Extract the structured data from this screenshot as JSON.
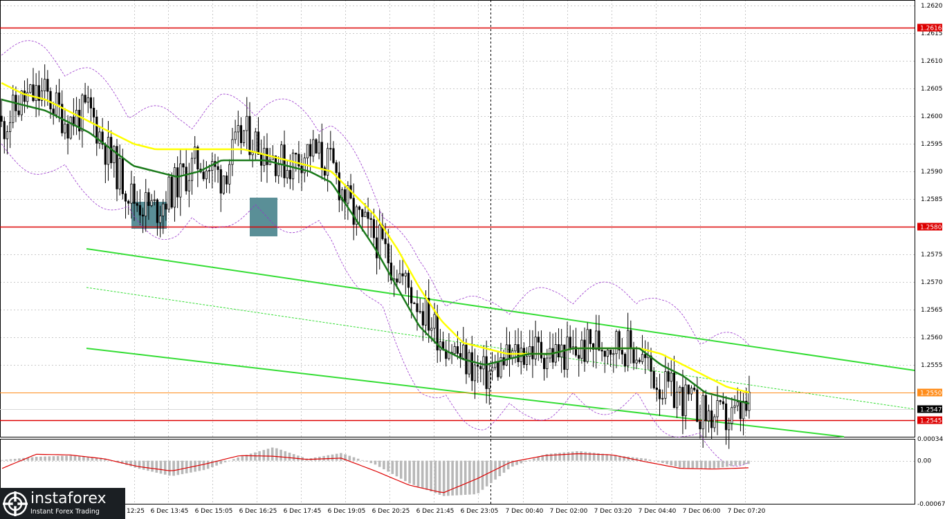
{
  "logo": {
    "name": "instaforex",
    "tagline": "Instant Forex Trading"
  },
  "colors": {
    "ma_slow": "#ffff00",
    "ma_fast": "#1a7a1a",
    "envelope": "#9933cc",
    "channel": "#33dd33",
    "level": "#dd0000",
    "current_level": "#ff8c1a",
    "grid": "#c8c8c8",
    "marker": "#5a8f97",
    "macd_hist": "#b8b8b8",
    "macd_signal": "#dd0000"
  },
  "chart_data": [
    {
      "type": "candlestick",
      "title": "",
      "y_ticks": [
        1.262,
        1.2615,
        1.261,
        1.2605,
        1.26,
        1.2595,
        1.259,
        1.2585,
        1.258,
        1.2575,
        1.257,
        1.2565,
        1.256,
        1.2555,
        1.255,
        1.2545
      ],
      "y_tick_labels": [
        "1.2620",
        "1.2615",
        "1.2610",
        "1.2605",
        "1.2600",
        "1.2595",
        "1.2590",
        "1.2585",
        "1.2580",
        "1.2575",
        "1.2570",
        "1.2565",
        "1.2560",
        "1.2555",
        "1.2550",
        "1.2545"
      ],
      "x_tick_labels": [
        "12:25",
        "6 Dec 13:45",
        "6 Dec 15:05",
        "6 Dec 16:25",
        "6 Dec 17:45",
        "6 Dec 19:05",
        "6 Dec 20:25",
        "6 Dec 21:45",
        "6 Dec 23:05",
        "7 Dec 00:40",
        "7 Dec 02:00",
        "7 Dec 03:20",
        "7 Dec 04:40",
        "7 Dec 06:00",
        "7 Dec 07:20"
      ],
      "ylim": [
        1.2542,
        1.2621
      ],
      "horizontal_levels": [
        {
          "value": 1.2616,
          "label": "1.2616"
        },
        {
          "value": 1.258,
          "label": "1.2580"
        },
        {
          "value": 1.2545,
          "label": "1.2545"
        }
      ],
      "current_level": {
        "value": 1.255,
        "label": "1.2550"
      },
      "last_price": {
        "value": 1.2547,
        "label": "1.2547"
      },
      "price_path": [
        1.2598,
        1.2603,
        1.2604,
        1.2599,
        1.2601,
        1.2592,
        1.2585,
        1.2583,
        1.2588,
        1.2592,
        1.2589,
        1.2597,
        1.2594,
        1.2591,
        1.2594,
        1.2591,
        1.2582,
        1.2578,
        1.2572,
        1.2566,
        1.256,
        1.2556,
        1.2553,
        1.2556,
        1.2558,
        1.2557,
        1.2557,
        1.2559,
        1.2559,
        1.2557,
        1.2551,
        1.2549,
        1.2546,
        1.2545,
        1.2547
      ],
      "ma_fast_path": [
        1.2603,
        1.2602,
        1.2601,
        1.2599,
        1.2597,
        1.2594,
        1.2591,
        1.259,
        1.2589,
        1.259,
        1.2592,
        1.2592,
        1.2592,
        1.2591,
        1.259,
        1.2588,
        1.2582,
        1.2576,
        1.2569,
        1.2562,
        1.2558,
        1.2556,
        1.2555,
        1.2556,
        1.2557,
        1.2557,
        1.2558,
        1.2558,
        1.2558,
        1.2558,
        1.2555,
        1.2553,
        1.255,
        1.2549,
        1.2548
      ],
      "ma_slow_path": [
        1.2606,
        1.2604,
        1.2603,
        1.2601,
        1.2599,
        1.2597,
        1.2595,
        1.2594,
        1.2594,
        1.2594,
        1.2594,
        1.2594,
        1.2593,
        1.2592,
        1.2591,
        1.259,
        1.2586,
        1.2582,
        1.2576,
        1.2569,
        1.2563,
        1.2559,
        1.2558,
        1.2557,
        1.2557,
        1.2557,
        1.2558,
        1.2558,
        1.2558,
        1.2558,
        1.2557,
        1.2555,
        1.2553,
        1.2551,
        1.255
      ],
      "channel_upper": {
        "start": 1.2576,
        "end": 1.2554
      },
      "channel_lower": {
        "start": 1.2558,
        "end": 1.2542
      },
      "channel_mid": {
        "start": 1.2569,
        "end": 1.2547
      },
      "x_range": [
        "6 Dec 12:25",
        "7 Dec 07:20"
      ]
    },
    {
      "type": "bar",
      "title": "",
      "y_ticks": [
        0.00034,
        0.0,
        -0.00067
      ],
      "y_tick_labels": [
        "0.00034",
        "0.00",
        "-0.00067"
      ],
      "ylim": [
        -0.00067,
        0.00034
      ],
      "histogram_path": [
        1e-05,
        6e-05,
        8e-05,
        4e-05,
        -0.00012,
        -0.00024,
        -0.00014,
        6e-05,
        0.00021,
        3e-05,
        0.00012,
        -6e-05,
        -0.00035,
        -0.00055,
        -0.00052,
        -0.0001,
        0.0001,
        0.00015,
        9e-05,
        3e-05,
        -0.00011,
        -0.00012,
        -5e-05
      ],
      "signal_path": [
        -0.00012,
        0.0001,
        9e-05,
        3e-05,
        -9e-05,
        -0.00016,
        -5e-05,
        8e-05,
        7e-05,
        2e-05,
        4e-05,
        -0.00016,
        -0.00038,
        -0.0005,
        -0.00028,
        -2e-05,
        8e-05,
        0.00011,
        9e-05,
        -2e-05,
        -0.00012,
        -0.00013,
        -0.00011
      ]
    }
  ]
}
